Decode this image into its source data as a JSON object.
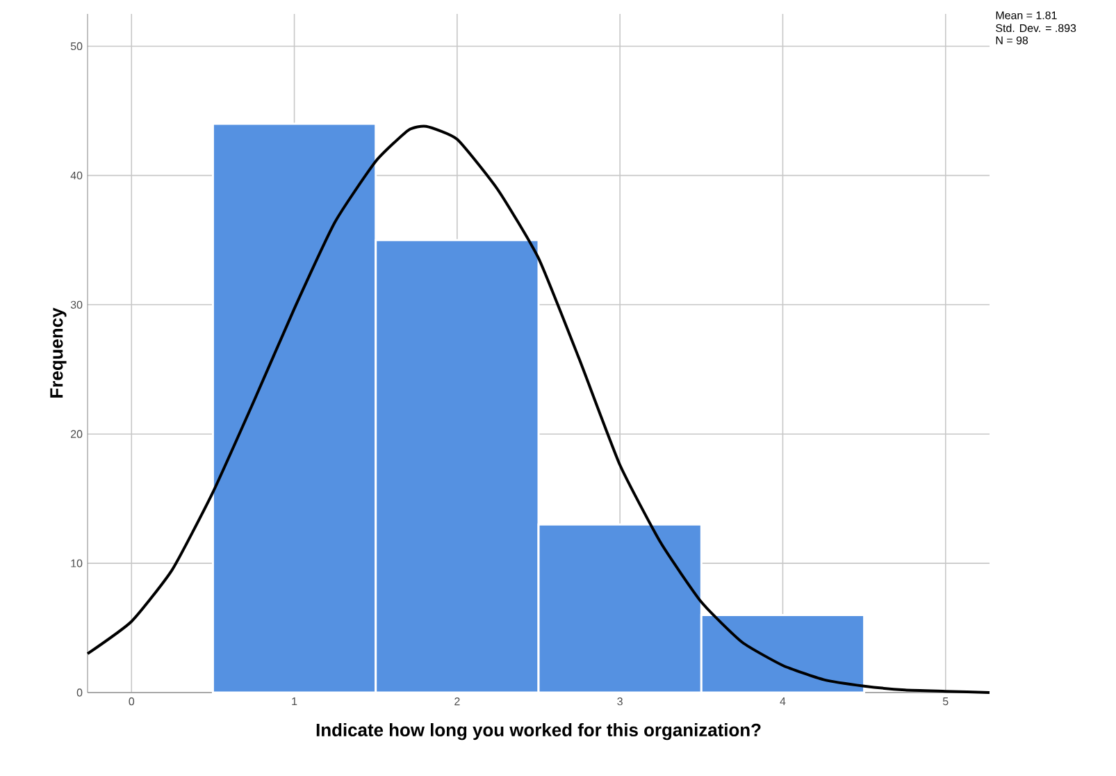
{
  "chart_data": {
    "type": "histogram",
    "xlabel": "Indicate how long you worked for this organization?",
    "ylabel": "Frequency",
    "bins": [
      0.5,
      1.5,
      2.5,
      3.5,
      4.5
    ],
    "values": [
      44,
      35,
      13,
      6
    ],
    "color": "#5591e1",
    "series": [
      {
        "type": "line",
        "color": "#000000",
        "x": [
          -0.27,
          0,
          0.25,
          0.5,
          0.75,
          1,
          1.25,
          1.5,
          1.7,
          1.81,
          2,
          2.25,
          2.5,
          2.75,
          3,
          3.25,
          3.5,
          3.75,
          4,
          4.25,
          4.5,
          4.75,
          5,
          5.27
        ],
        "values": [
          3,
          5.5,
          9.5,
          15.5,
          22.5,
          29.7,
          36.4,
          41.1,
          43.5,
          43.8,
          42.8,
          38.9,
          33.6,
          25.8,
          17.6,
          11.6,
          7,
          3.9,
          2.1,
          1,
          0.5,
          0.2,
          0.1,
          0
        ]
      }
    ],
    "xlim": [
      -0.27,
      5.27
    ],
    "ylim": [
      0,
      52.5
    ],
    "xticks": [
      0,
      1,
      2,
      3,
      4,
      5
    ],
    "yticks": [
      0,
      10,
      20,
      30,
      40,
      50
    ],
    "grid": true,
    "annotations": [
      "Mean = 1.81",
      "Std. Dev. = .893",
      "N = 98"
    ]
  }
}
